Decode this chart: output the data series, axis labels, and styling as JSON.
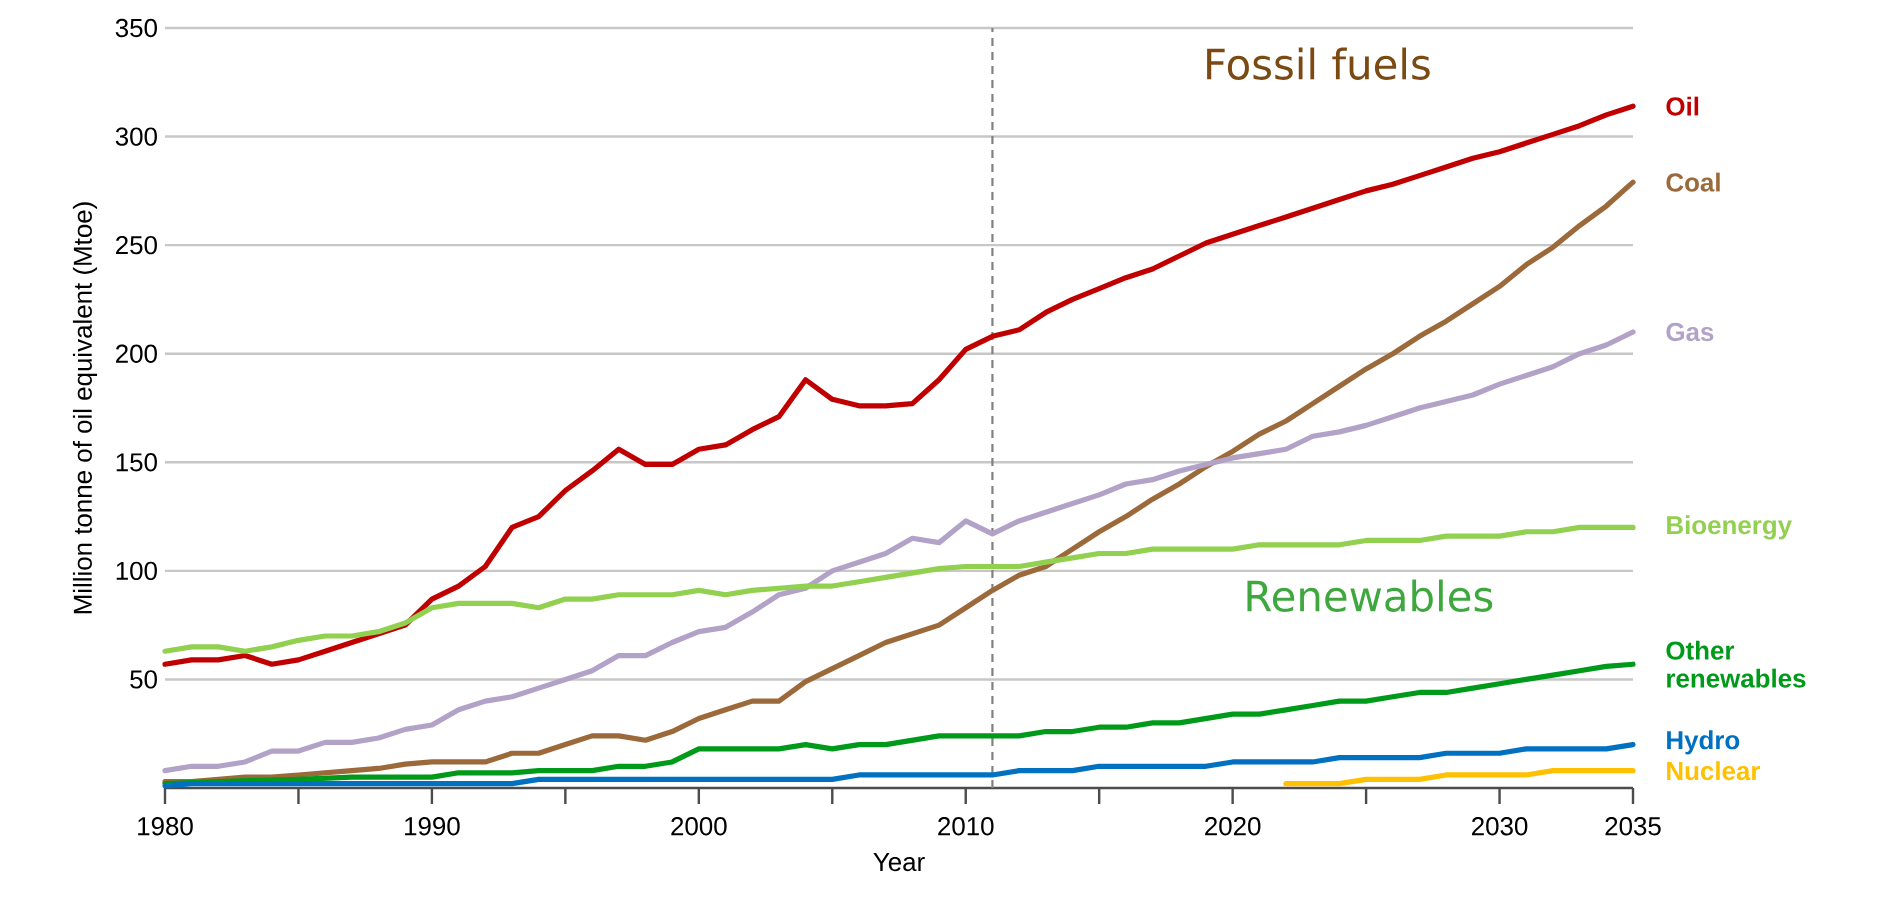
{
  "chart_data": {
    "type": "line",
    "xlabel": "Year",
    "ylabel": "Million tonne of oil equivalent (Mtoe)",
    "annotations": [
      "Fossil fuels",
      "Renewables"
    ],
    "xlim": [
      1980,
      2035
    ],
    "ylim": [
      0,
      350
    ],
    "xticks": [
      1980,
      {
        "value": 1985,
        "label": null
      },
      1990,
      {
        "value": 1995,
        "label": null
      },
      2000,
      {
        "value": 2005,
        "label": null
      },
      2010,
      {
        "value": 2015,
        "label": null
      },
      2020,
      {
        "value": 2025,
        "label": null
      },
      2030,
      2035
    ],
    "yticks": [
      50,
      100,
      150,
      200,
      250,
      300,
      350
    ],
    "grid": "y",
    "marker": "none",
    "line_style": "solid",
    "ref_lines": [
      {
        "axis": "x",
        "value": 2011,
        "color": "#808080",
        "line_style": "dashed"
      }
    ],
    "series": [
      {
        "name": "Oil",
        "color": "#c00000",
        "x": [
          1980,
          1981,
          1982,
          1983,
          1984,
          1985,
          1986,
          1987,
          1988,
          1989,
          1990,
          1991,
          1992,
          1993,
          1994,
          1995,
          1996,
          1997,
          1998,
          1999,
          2000,
          2001,
          2002,
          2003,
          2004,
          2005,
          2006,
          2007,
          2008,
          2009,
          2010,
          2011,
          2012,
          2013,
          2014,
          2015,
          2016,
          2017,
          2018,
          2019,
          2020,
          2021,
          2022,
          2023,
          2024,
          2025,
          2026,
          2027,
          2028,
          2029,
          2030,
          2031,
          2032,
          2033,
          2034,
          2035
        ],
        "values": [
          57,
          59,
          59,
          61,
          57,
          59,
          63,
          67,
          71,
          75,
          87,
          93,
          102,
          120,
          125,
          137,
          146,
          156,
          149,
          149,
          156,
          158,
          165,
          171,
          188,
          179,
          176,
          176,
          177,
          188,
          202,
          208,
          211,
          219,
          225,
          230,
          235,
          239,
          245,
          251,
          255,
          259,
          263,
          267,
          271,
          275,
          278,
          282,
          286,
          290,
          293,
          297,
          301,
          305,
          310,
          314
        ]
      },
      {
        "name": "Coal",
        "color": "#9c6a3a",
        "x": [
          1980,
          1981,
          1982,
          1983,
          1984,
          1985,
          1986,
          1987,
          1988,
          1989,
          1990,
          1991,
          1992,
          1993,
          1994,
          1995,
          1996,
          1997,
          1998,
          1999,
          2000,
          2001,
          2002,
          2003,
          2004,
          2005,
          2006,
          2007,
          2008,
          2009,
          2010,
          2011,
          2012,
          2013,
          2014,
          2015,
          2016,
          2017,
          2018,
          2019,
          2020,
          2021,
          2022,
          2023,
          2024,
          2025,
          2026,
          2027,
          2028,
          2029,
          2030,
          2031,
          2032,
          2033,
          2034,
          2035
        ],
        "values": [
          3,
          3,
          4,
          5,
          5,
          6,
          7,
          8,
          9,
          11,
          12,
          12,
          12,
          16,
          16,
          20,
          24,
          24,
          22,
          26,
          32,
          36,
          40,
          40,
          49,
          55,
          61,
          67,
          71,
          75,
          83,
          91,
          98,
          102,
          110,
          118,
          125,
          133,
          140,
          148,
          155,
          163,
          169,
          177,
          185,
          193,
          200,
          208,
          215,
          223,
          231,
          241,
          249,
          259,
          268,
          279
        ]
      },
      {
        "name": "Gas",
        "color": "#b3a2c7",
        "x": [
          1980,
          1981,
          1982,
          1983,
          1984,
          1985,
          1986,
          1987,
          1988,
          1989,
          1990,
          1991,
          1992,
          1993,
          1994,
          1995,
          1996,
          1997,
          1998,
          1999,
          2000,
          2001,
          2002,
          2003,
          2004,
          2005,
          2006,
          2007,
          2008,
          2009,
          2010,
          2011,
          2012,
          2013,
          2014,
          2015,
          2016,
          2017,
          2018,
          2019,
          2020,
          2021,
          2022,
          2023,
          2024,
          2025,
          2026,
          2027,
          2028,
          2029,
          2030,
          2031,
          2032,
          2033,
          2034,
          2035
        ],
        "values": [
          8,
          10,
          10,
          12,
          17,
          17,
          21,
          21,
          23,
          27,
          29,
          36,
          40,
          42,
          46,
          50,
          54,
          61,
          61,
          67,
          72,
          74,
          81,
          89,
          92,
          100,
          104,
          108,
          115,
          113,
          123,
          117,
          123,
          127,
          131,
          135,
          140,
          142,
          146,
          149,
          152,
          154,
          156,
          162,
          164,
          167,
          171,
          175,
          178,
          181,
          186,
          190,
          194,
          200,
          204,
          210
        ]
      },
      {
        "name": "Bioenergy",
        "color": "#92d050",
        "x": [
          1980,
          1981,
          1982,
          1983,
          1984,
          1985,
          1986,
          1987,
          1988,
          1989,
          1990,
          1991,
          1992,
          1993,
          1994,
          1995,
          1996,
          1997,
          1998,
          1999,
          2000,
          2001,
          2002,
          2003,
          2004,
          2005,
          2006,
          2007,
          2008,
          2009,
          2010,
          2011,
          2012,
          2013,
          2014,
          2015,
          2016,
          2017,
          2018,
          2019,
          2020,
          2021,
          2022,
          2023,
          2024,
          2025,
          2026,
          2027,
          2028,
          2029,
          2030,
          2031,
          2032,
          2033,
          2034,
          2035
        ],
        "values": [
          63,
          65,
          65,
          63,
          65,
          68,
          70,
          70,
          72,
          76,
          83,
          85,
          85,
          85,
          83,
          87,
          87,
          89,
          89,
          89,
          91,
          89,
          91,
          92,
          93,
          93,
          95,
          97,
          99,
          101,
          102,
          102,
          102,
          104,
          106,
          108,
          108,
          110,
          110,
          110,
          110,
          112,
          112,
          112,
          112,
          114,
          114,
          114,
          116,
          116,
          116,
          118,
          118,
          120,
          120,
          120
        ]
      },
      {
        "name": "Other renewables",
        "color": "#009a1a",
        "x": [
          1980,
          1982,
          1985,
          1987,
          1990,
          1991,
          1993,
          1994,
          1996,
          1997,
          1998,
          1999,
          2000,
          2003,
          2004,
          2005,
          2006,
          2007,
          2008,
          2009,
          2011,
          2012,
          2013,
          2014,
          2015,
          2016,
          2017,
          2018,
          2019,
          2020,
          2021,
          2022,
          2023,
          2024,
          2025,
          2026,
          2027,
          2028,
          2029,
          2030,
          2031,
          2032,
          2033,
          2034,
          2035
        ],
        "values": [
          2,
          3,
          4,
          5,
          5,
          7,
          7,
          8,
          8,
          10,
          10,
          12,
          18,
          18,
          20,
          18,
          20,
          20,
          22,
          24,
          24,
          24,
          26,
          26,
          28,
          28,
          30,
          30,
          32,
          34,
          34,
          36,
          38,
          40,
          40,
          42,
          44,
          44,
          46,
          48,
          50,
          52,
          54,
          56,
          57
        ]
      },
      {
        "name": "Hydro",
        "color": "#0070c0",
        "x": [
          1980,
          1981,
          1993,
          1994,
          2005,
          2006,
          2011,
          2012,
          2014,
          2015,
          2019,
          2020,
          2023,
          2024,
          2027,
          2028,
          2030,
          2031,
          2034,
          2035
        ],
        "values": [
          1,
          2,
          2,
          4,
          4,
          6,
          6,
          8,
          8,
          10,
          10,
          12,
          12,
          14,
          14,
          16,
          16,
          18,
          18,
          20
        ]
      },
      {
        "name": "Nuclear",
        "color": "#ffc000",
        "x": [
          2022,
          2024,
          2025,
          2027,
          2028,
          2031,
          2032,
          2035
        ],
        "values": [
          2,
          2,
          4,
          4,
          6,
          6,
          8,
          8
        ]
      }
    ]
  }
}
